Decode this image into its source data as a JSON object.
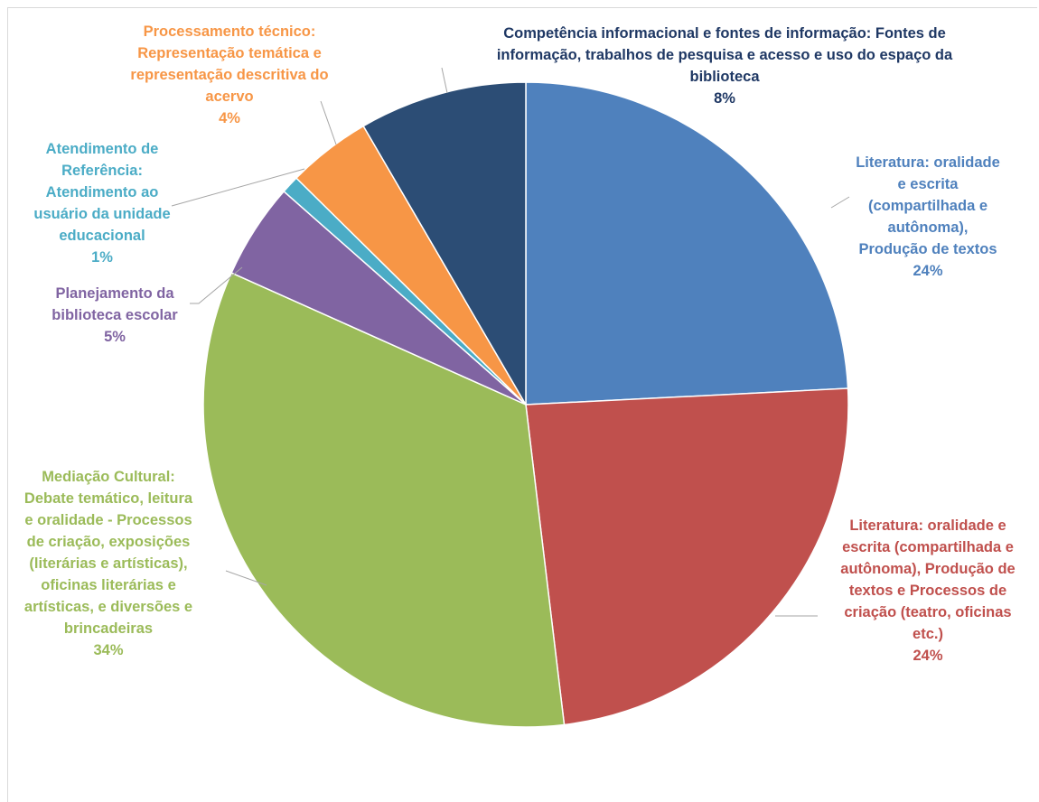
{
  "chart_data": {
    "type": "pie",
    "start_angle_deg": 0,
    "direction": "clockwise",
    "slices": [
      {
        "category_lines": [
          "Literatura: oralidade",
          "e escrita",
          "(compartilhada e",
          "autônoma),",
          "Produção de textos"
        ],
        "percent_label": "24%",
        "value": 24.2,
        "color": "#4F81BD",
        "label_color": "#4F81BD"
      },
      {
        "category_lines": [
          "Literatura: oralidade e",
          "escrita (compartilhada e",
          "autônoma), Produção de",
          "textos e Processos de",
          "criação (teatro, oficinas",
          "etc.)"
        ],
        "percent_label": "24%",
        "value": 23.9,
        "color": "#C0504D",
        "label_color": "#C0504D"
      },
      {
        "category_lines": [
          "Mediação Cultural:",
          "Debate temático, leitura",
          "e oralidade - Processos",
          "de criação, exposições",
          "(literárias e artísticas),",
          "oficinas literárias e",
          "artísticas, e diversões e",
          "brincadeiras"
        ],
        "percent_label": "34%",
        "value": 33.6,
        "color": "#9BBB59",
        "label_color": "#9BBB59"
      },
      {
        "category_lines": [
          "Planejamento da",
          "biblioteca escolar"
        ],
        "percent_label": "5%",
        "value": 4.8,
        "color": "#8064A2",
        "label_color": "#8064A2"
      },
      {
        "category_lines": [
          "Atendimento de",
          "Referência:",
          "Atendimento ao",
          "usuário da unidade",
          "educacional"
        ],
        "percent_label": "1%",
        "value": 0.9,
        "color": "#4BACC6",
        "label_color": "#4BACC6"
      },
      {
        "category_lines": [
          "Processamento técnico:",
          "Representação temática e",
          "representação descritiva do",
          "acervo"
        ],
        "percent_label": "4%",
        "value": 4.2,
        "color": "#F79646",
        "label_color": "#F79646"
      },
      {
        "category_lines": [
          "Competência informacional e fontes de informação: Fontes de",
          "informação, trabalhos de pesquisa e acesso e uso do espaço da",
          "biblioteca"
        ],
        "percent_label": "8%",
        "value": 8.4,
        "color": "#2C4D75",
        "label_color": "#1F3864"
      }
    ]
  }
}
